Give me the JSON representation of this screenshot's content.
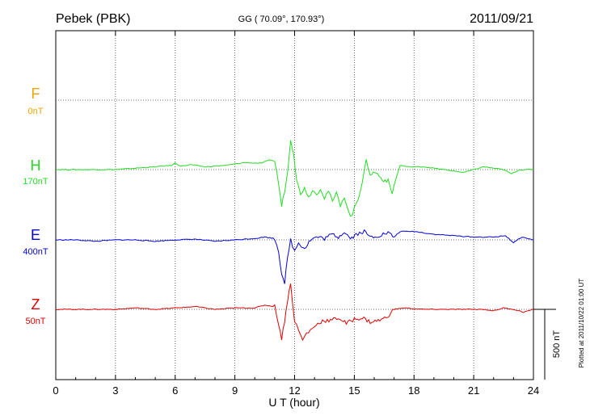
{
  "chart_data": {
    "type": "line",
    "station": "Pebek (PBK)",
    "coords": "GG ( 70.09°, 170.93°)",
    "date": "2011/09/21",
    "xlabel": "U T (hour)",
    "xlim": [
      0,
      24
    ],
    "x_ticks": [
      "0",
      "3",
      "6",
      "9",
      "12",
      "15",
      "18",
      "21",
      "24"
    ],
    "scale_label": "500 nT",
    "plotted_note": "Plotted at 2011/10/22 01:00 UT",
    "grid": true,
    "series": [
      {
        "name": "F",
        "baseline": "0nT",
        "color": "#f5a300",
        "x": [],
        "y": []
      },
      {
        "name": "H",
        "baseline": "170nT",
        "color": "#22dd22",
        "x": [
          0,
          1,
          2,
          3,
          4,
          5,
          5.8,
          6.0,
          6.3,
          6.8,
          7.5,
          8.5,
          9.5,
          10.3,
          10.8,
          11.0,
          11.2,
          11.35,
          11.5,
          11.65,
          11.8,
          11.95,
          12.1,
          12.3,
          12.5,
          12.7,
          12.9,
          13.1,
          13.3,
          13.5,
          13.7,
          13.9,
          14.1,
          14.3,
          14.5,
          14.7,
          14.9,
          15.0,
          15.2,
          15.4,
          15.6,
          15.8,
          16.1,
          16.4,
          16.7,
          16.9,
          17.1,
          17.3,
          17.7,
          18.5,
          19.5,
          20.5,
          21.5,
          22.5,
          22.9,
          23.3,
          24
        ],
        "y": [
          0,
          0,
          0,
          0,
          10,
          20,
          30,
          45,
          25,
          35,
          20,
          30,
          50,
          45,
          70,
          60,
          -100,
          -260,
          -150,
          -20,
          220,
          120,
          -70,
          -180,
          -120,
          -200,
          -140,
          -180,
          -130,
          -200,
          -150,
          -230,
          -170,
          -250,
          -190,
          -300,
          -340,
          -260,
          -200,
          -90,
          60,
          -30,
          -20,
          -70,
          -80,
          -170,
          -60,
          30,
          20,
          20,
          0,
          -20,
          20,
          0,
          -30,
          0,
          0
        ]
      },
      {
        "name": "E",
        "baseline": "400nT",
        "color": "#0000dd",
        "x": [
          0,
          1,
          2,
          3,
          4,
          5,
          6,
          7,
          8,
          9,
          10,
          10.5,
          11.0,
          11.2,
          11.35,
          11.5,
          11.65,
          11.8,
          12.0,
          12.2,
          12.5,
          12.8,
          13.1,
          13.5,
          13.9,
          14.2,
          14.5,
          14.8,
          15.1,
          15.5,
          15.8,
          16.2,
          16.7,
          17.0,
          17.3,
          18,
          19,
          20,
          21,
          22,
          22.6,
          23.0,
          23.4,
          24
        ],
        "y": [
          0,
          0,
          -10,
          0,
          0,
          -10,
          0,
          5,
          -10,
          0,
          10,
          20,
          10,
          -80,
          -240,
          -300,
          -130,
          0,
          -80,
          -20,
          -60,
          0,
          20,
          10,
          40,
          20,
          60,
          10,
          40,
          60,
          20,
          30,
          50,
          20,
          60,
          60,
          40,
          30,
          20,
          20,
          30,
          -20,
          20,
          0
        ]
      },
      {
        "name": "Z",
        "baseline": "50nT",
        "color": "#dd0000",
        "x": [
          0,
          1,
          2,
          3,
          4,
          5,
          6,
          7,
          8,
          9,
          10,
          10.5,
          11.0,
          11.2,
          11.35,
          11.5,
          11.65,
          11.8,
          12.0,
          12.2,
          12.4,
          12.6,
          12.8,
          13.0,
          13.4,
          13.8,
          14.2,
          14.6,
          15.0,
          15.4,
          15.8,
          16.2,
          16.6,
          17.0,
          17.5,
          18.5,
          19.5,
          20.5,
          21.5,
          22.0,
          22.5,
          23.0,
          23.5,
          24
        ],
        "y": [
          0,
          0,
          0,
          0,
          10,
          0,
          10,
          20,
          0,
          10,
          10,
          30,
          20,
          -100,
          -210,
          -80,
          70,
          180,
          -80,
          -150,
          -220,
          -170,
          -150,
          -120,
          -80,
          -80,
          -60,
          -100,
          -70,
          -60,
          -90,
          -80,
          -60,
          0,
          10,
          0,
          0,
          0,
          0,
          -10,
          10,
          0,
          -20,
          0
        ]
      }
    ]
  }
}
